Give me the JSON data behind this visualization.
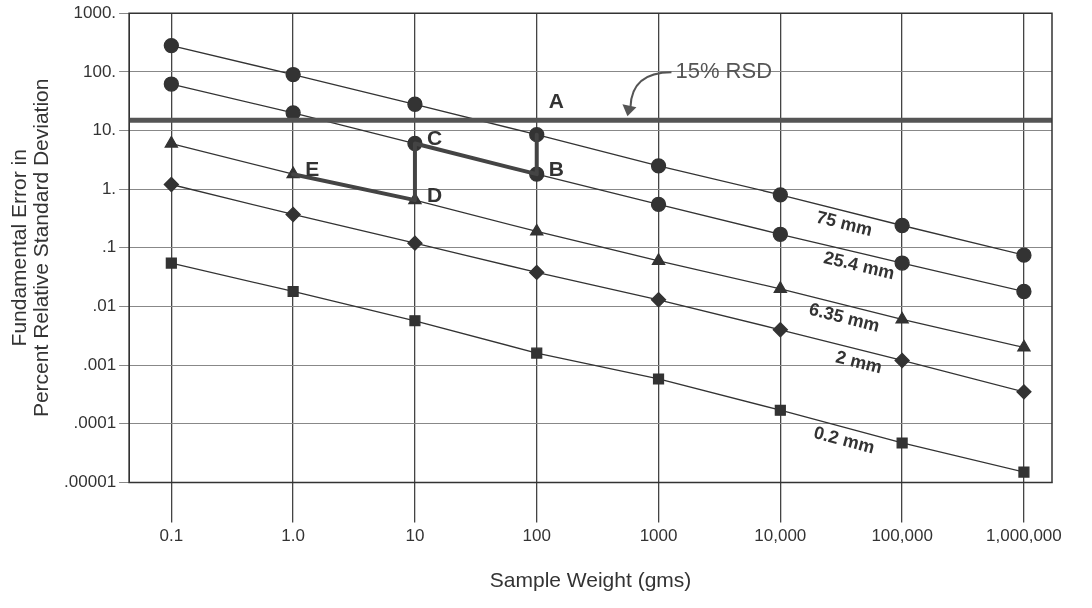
{
  "chart_data": {
    "type": "line",
    "xlabel": "Sample Weight (gms)",
    "ylabel": "Fundamental Error in\nPercent Relative Standard Deviation",
    "x": [
      0.1,
      1,
      10,
      100,
      1000,
      10000,
      100000,
      1000000
    ],
    "series": [
      {
        "name": "75 mm",
        "color": "#333333",
        "marker": "circle",
        "values": [
          280,
          90,
          28,
          8.5,
          2.5,
          0.8,
          0.24,
          0.075
        ]
      },
      {
        "name": "25.4 mm",
        "color": "#333333",
        "marker": "circle",
        "values": [
          62,
          20,
          6,
          1.8,
          0.55,
          0.17,
          0.055,
          0.018
        ]
      },
      {
        "name": "6.35 mm",
        "color": "#333333",
        "marker": "triangle",
        "values": [
          6,
          1.8,
          0.65,
          0.19,
          0.06,
          0.02,
          0.006,
          0.002
        ]
      },
      {
        "name": "2 mm",
        "color": "#333333",
        "marker": "diamond",
        "values": [
          1.2,
          0.37,
          0.12,
          0.038,
          0.013,
          0.004,
          0.0012,
          0.00035
        ]
      },
      {
        "name": "0.2 mm",
        "color": "#333333",
        "marker": "square",
        "values": [
          0.055,
          0.018,
          0.0057,
          0.0016,
          0.00058,
          0.00017,
          4.7e-05,
          1.5e-05
        ]
      },
      {
        "type": "line",
        "color": "#444444",
        "marker": "none",
        "x": [
          1,
          10,
          10,
          100,
          100
        ],
        "values": [
          1.8,
          0.65,
          6,
          1.8,
          8.5
        ]
      }
    ],
    "log": "xy",
    "xlim": [
      0.045,
      1700000
    ],
    "xticks": [
      {
        "value": 0.1,
        "label": "0.1"
      },
      {
        "value": 1,
        "label": "1.0"
      },
      {
        "value": 10,
        "label": "10"
      },
      {
        "value": 100,
        "label": "100"
      },
      {
        "value": 1000,
        "label": "1000"
      },
      {
        "value": 10000,
        "label": "10,000"
      },
      {
        "value": 100000,
        "label": "100,000"
      },
      {
        "value": 1000000,
        "label": "1,000,000"
      }
    ],
    "ylim": [
      1e-05,
      1000
    ],
    "yticks": [
      {
        "value": 1000,
        "label": "1000."
      },
      {
        "value": 100,
        "label": "100."
      },
      {
        "value": 10,
        "label": "10."
      },
      {
        "value": 1,
        "label": "1."
      },
      {
        "value": 0.1,
        "label": ".1"
      },
      {
        "value": 0.01,
        "label": ".01"
      },
      {
        "value": 0.001,
        "label": ".001"
      },
      {
        "value": 0.0001,
        "label": ".0001"
      },
      {
        "value": 1e-05,
        "label": ".00001"
      }
    ],
    "ref_lines": [
      {
        "axis": "y",
        "value": 15,
        "label": "15% RSD",
        "color": "#555555"
      }
    ],
    "annotations": [
      {
        "text": "A",
        "x": 100,
        "y": 8.5
      },
      {
        "text": "B",
        "x": 100,
        "y": 1.8
      },
      {
        "text": "C",
        "x": 10,
        "y": 6
      },
      {
        "text": "D",
        "x": 10,
        "y": 0.65
      },
      {
        "text": "E",
        "x": 1,
        "y": 1.8
      }
    ],
    "grid": true,
    "legend": false
  }
}
